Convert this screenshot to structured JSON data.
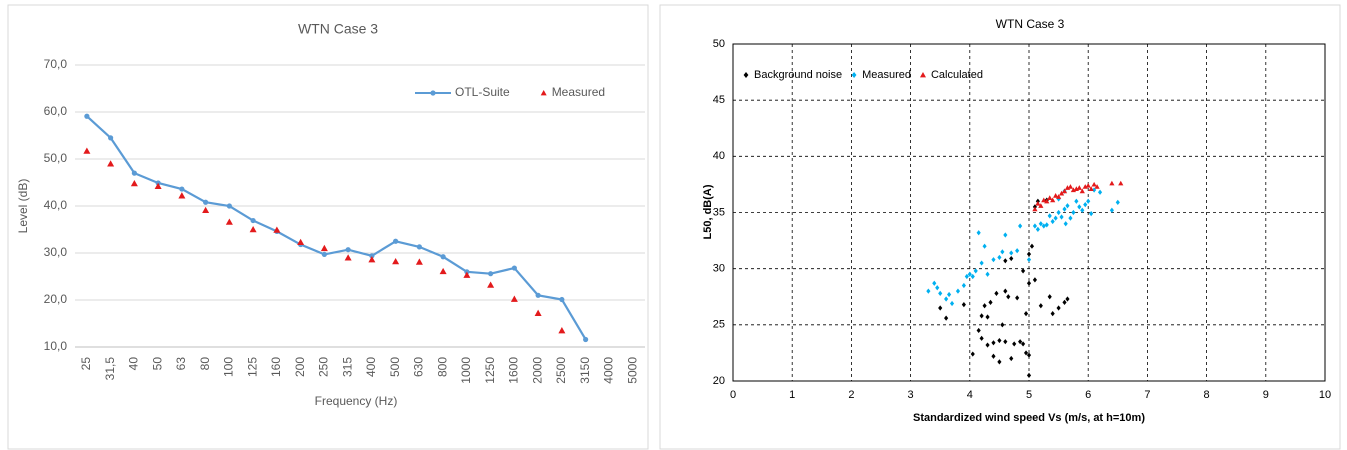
{
  "chart_data": [
    {
      "type": "line",
      "title": "WTN Case 3",
      "x_label": "Frequency (Hz)",
      "y_label": "Level (dB)",
      "categories": [
        "25",
        "31,5",
        "40",
        "50",
        "63",
        "80",
        "100",
        "125",
        "160",
        "200",
        "250",
        "315",
        "400",
        "500",
        "630",
        "800",
        "1000",
        "1250",
        "1600",
        "2000",
        "2500",
        "3150",
        "4000",
        "5000"
      ],
      "series": [
        {
          "name": "OTL-Suite",
          "color": "#5b9bd5",
          "marker": "circle",
          "line": true,
          "values": [
            59.1,
            54.5,
            47.0,
            44.9,
            43.6,
            40.8,
            40.0,
            36.9,
            34.6,
            31.8,
            29.7,
            30.7,
            29.4,
            32.5,
            31.3,
            29.2,
            26.0,
            25.6,
            26.8,
            21.0,
            20.1,
            11.6,
            null,
            null
          ]
        },
        {
          "name": "Measured",
          "color": "#e31a1c",
          "marker": "triangle",
          "line": false,
          "values": [
            51.7,
            49.0,
            44.8,
            44.2,
            42.2,
            39.1,
            36.6,
            35.0,
            34.9,
            32.3,
            31.0,
            29.0,
            28.6,
            28.2,
            28.1,
            26.1,
            25.3,
            23.2,
            20.2,
            17.2,
            13.5,
            null,
            null,
            null
          ]
        }
      ],
      "ylim": [
        10,
        70
      ],
      "yticks": [
        {
          "value": 10,
          "label": "10,0"
        },
        {
          "value": 20,
          "label": "20,0"
        },
        {
          "value": 30,
          "label": "30,0"
        },
        {
          "value": 40,
          "label": "40,0"
        },
        {
          "value": 50,
          "label": "50,0"
        },
        {
          "value": 60,
          "label": "60,0"
        },
        {
          "value": 70,
          "label": "70,0"
        }
      ],
      "grid": true,
      "legend": "top-right"
    },
    {
      "type": "scatter",
      "title": "WTN Case 3",
      "x_label": "Standardized wind speed Vs (m/s, at h=10m)",
      "y_label": "L50, dB(A)",
      "series": [
        {
          "name": "Background noise",
          "color": "#000000",
          "marker": "diamond",
          "x": [
            3.5,
            3.6,
            3.9,
            4.05,
            4.15,
            4.2,
            4.2,
            4.25,
            4.3,
            4.3,
            4.35,
            4.4,
            4.4,
            4.45,
            4.5,
            4.5,
            4.55,
            4.6,
            4.6,
            4.6,
            4.65,
            4.7,
            4.7,
            4.75,
            4.8,
            4.85,
            4.9,
            4.9,
            4.95,
            4.95,
            5.0,
            5.0,
            5.0,
            5.0,
            5.05,
            5.1,
            5.1,
            5.15,
            5.2,
            5.35,
            5.4,
            5.5,
            5.6,
            5.65,
            5.3
          ],
          "values": [
            26.5,
            25.6,
            26.8,
            22.4,
            24.5,
            23.8,
            25.8,
            26.7,
            23.2,
            25.7,
            27.0,
            23.4,
            22.2,
            27.8,
            21.7,
            23.6,
            25.0,
            23.5,
            30.7,
            28.0,
            27.5,
            22.0,
            30.9,
            23.3,
            27.4,
            23.5,
            29.8,
            23.3,
            22.5,
            26.0,
            22.3,
            20.5,
            28.7,
            31.3,
            32.0,
            29.0,
            35.5,
            36.0,
            26.7,
            27.5,
            26.0,
            26.5,
            27.0,
            27.3,
            36.1
          ]
        },
        {
          "name": "Measured",
          "color": "#00b0f0",
          "marker": "diamond",
          "x": [
            3.3,
            3.4,
            3.45,
            3.5,
            3.6,
            3.65,
            3.7,
            3.8,
            3.9,
            3.95,
            4.0,
            4.05,
            4.1,
            4.15,
            4.2,
            4.25,
            4.3,
            4.4,
            4.5,
            4.55,
            4.6,
            4.7,
            4.8,
            4.85,
            5.0,
            5.1,
            5.15,
            5.2,
            5.25,
            5.3,
            5.35,
            5.4,
            5.45,
            5.5,
            5.55,
            5.6,
            5.62,
            5.65,
            5.7,
            5.75,
            5.8,
            5.85,
            5.9,
            5.95,
            6.0,
            6.05,
            6.1,
            6.2,
            6.4,
            6.5,
            5.5,
            5.6
          ],
          "values": [
            28.0,
            28.7,
            28.3,
            27.8,
            27.3,
            27.7,
            26.9,
            28.0,
            28.5,
            29.3,
            29.5,
            29.3,
            29.8,
            33.2,
            30.5,
            32.0,
            29.5,
            30.8,
            31.0,
            31.5,
            33.0,
            31.4,
            31.6,
            33.8,
            30.8,
            33.8,
            33.5,
            34.0,
            33.8,
            33.9,
            34.7,
            34.2,
            34.5,
            35.0,
            34.6,
            35.3,
            34.0,
            35.6,
            34.5,
            35.0,
            36.0,
            35.5,
            35.2,
            35.7,
            36.0,
            34.9,
            37.0,
            36.8,
            35.2,
            35.9,
            36.2,
            36.9
          ]
        },
        {
          "name": "Calculated",
          "color": "#e31a1c",
          "marker": "triangle",
          "x": [
            5.1,
            5.15,
            5.2,
            5.3,
            5.35,
            5.4,
            5.45,
            5.5,
            5.55,
            5.6,
            5.65,
            5.7,
            5.75,
            5.8,
            5.85,
            5.9,
            5.95,
            6.0,
            6.05,
            6.1,
            6.15,
            6.4,
            6.55,
            5.25
          ],
          "values": [
            35.3,
            35.8,
            35.6,
            36.0,
            36.3,
            36.1,
            36.5,
            36.4,
            36.7,
            36.9,
            37.2,
            37.3,
            37.0,
            37.1,
            37.2,
            36.9,
            37.3,
            37.4,
            37.1,
            37.5,
            37.3,
            37.6,
            37.6,
            36.1
          ]
        }
      ],
      "xlim": [
        0,
        10
      ],
      "xticks": [
        0,
        1,
        2,
        3,
        4,
        5,
        6,
        7,
        8,
        9,
        10
      ],
      "ylim": [
        20,
        50
      ],
      "yticks": [
        20,
        25,
        30,
        35,
        40,
        45,
        50
      ],
      "grid": true,
      "legend": "top-left"
    }
  ]
}
